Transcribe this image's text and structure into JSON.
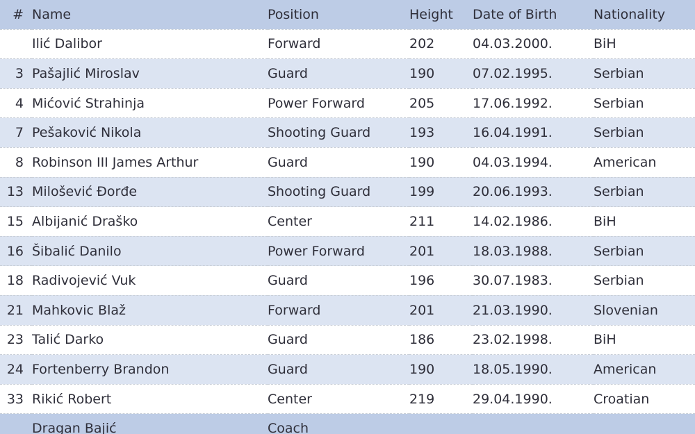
{
  "headers": {
    "num": "#",
    "name": "Name",
    "position": "Position",
    "height": "Height",
    "dob": "Date of Birth",
    "nationality": "Nationality"
  },
  "players": [
    {
      "num": "",
      "name": "Ilić Dalibor",
      "position": "Forward",
      "height": "202",
      "dob": "04.03.2000.",
      "nationality": "BiH"
    },
    {
      "num": "3",
      "name": "Pašajlić Miroslav",
      "position": "Guard",
      "height": "190",
      "dob": "07.02.1995.",
      "nationality": "Serbian"
    },
    {
      "num": "4",
      "name": "Mićović Strahinja",
      "position": "Power Forward",
      "height": "205",
      "dob": "17.06.1992.",
      "nationality": "Serbian"
    },
    {
      "num": "7",
      "name": "Pešaković Nikola",
      "position": "Shooting Guard",
      "height": "193",
      "dob": "16.04.1991.",
      "nationality": "Serbian"
    },
    {
      "num": "8",
      "name": "Robinson III James Arthur",
      "position": "Guard",
      "height": "190",
      "dob": "04.03.1994.",
      "nationality": "American"
    },
    {
      "num": "13",
      "name": "Milošević Đorđe",
      "position": "Shooting Guard",
      "height": "199",
      "dob": "20.06.1993.",
      "nationality": "Serbian"
    },
    {
      "num": "15",
      "name": "Albijanić Draško",
      "position": "Center",
      "height": "211",
      "dob": "14.02.1986.",
      "nationality": "BiH"
    },
    {
      "num": "16",
      "name": "Šibalić Danilo",
      "position": "Power Forward",
      "height": "201",
      "dob": "18.03.1988.",
      "nationality": "Serbian"
    },
    {
      "num": "18",
      "name": "Radivojević Vuk",
      "position": "Guard",
      "height": "196",
      "dob": "30.07.1983.",
      "nationality": "Serbian"
    },
    {
      "num": "21",
      "name": "Mahkovic Blaž",
      "position": "Forward",
      "height": "201",
      "dob": "21.03.1990.",
      "nationality": "Slovenian"
    },
    {
      "num": "23",
      "name": "Talić Darko",
      "position": "Guard",
      "height": "186",
      "dob": "23.02.1998.",
      "nationality": "BiH"
    },
    {
      "num": "24",
      "name": "Fortenberry Brandon",
      "position": "Guard",
      "height": "190",
      "dob": "18.05.1990.",
      "nationality": "American"
    },
    {
      "num": "33",
      "name": "Rikić Robert",
      "position": "Center",
      "height": "219",
      "dob": "29.04.1990.",
      "nationality": "Croatian"
    }
  ],
  "coach": {
    "name": "Dragan Bajić",
    "position": "Coach"
  }
}
